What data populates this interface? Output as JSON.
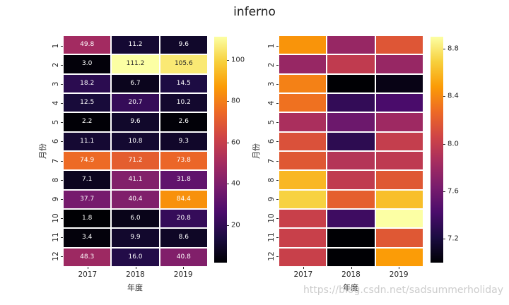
{
  "title": "inferno",
  "watermark": "https://blog.csdn.net/sadsummerholiday",
  "colors": {
    "background": "#ffffff",
    "tick_text": "#262626",
    "title_text": "#1f1f1f",
    "watermark_text": "#cccccc",
    "annotation_light": "#ffffff",
    "annotation_dark": "#262626",
    "cell_gap": "#ffffff"
  },
  "chart_data": [
    {
      "type": "heatmap",
      "colormap": "inferno",
      "xlabel": "年度",
      "ylabel": "月份",
      "columns": [
        "2017",
        "2018",
        "2019"
      ],
      "rows": [
        "1",
        "2",
        "3",
        "4",
        "5",
        "6",
        "7",
        "8",
        "9",
        "10",
        "11",
        "12"
      ],
      "annotations_shown": true,
      "values_estimated": false,
      "vmin": 1.8,
      "vmax": 111.2,
      "colorbar_tick_labels": [
        "20",
        "40",
        "60",
        "80",
        "100"
      ],
      "colorbar_tick_values": [
        20,
        40,
        60,
        80,
        100
      ],
      "values": [
        [
          49.8,
          11.2,
          9.6
        ],
        [
          3.0,
          111.2,
          105.6
        ],
        [
          18.2,
          6.7,
          14.5
        ],
        [
          12.5,
          20.7,
          10.2
        ],
        [
          2.2,
          9.6,
          2.6
        ],
        [
          11.1,
          10.8,
          9.3
        ],
        [
          74.9,
          71.2,
          73.8
        ],
        [
          7.1,
          41.1,
          31.8
        ],
        [
          37.7,
          40.4,
          84.4
        ],
        [
          1.8,
          6.0,
          20.8
        ],
        [
          3.4,
          9.9,
          8.6
        ],
        [
          48.3,
          16.0,
          40.8
        ]
      ]
    },
    {
      "type": "heatmap",
      "colormap": "inferno",
      "xlabel": "年度",
      "ylabel": "月份",
      "columns": [
        "2017",
        "2018",
        "2019"
      ],
      "rows": [
        "1",
        "2",
        "3",
        "4",
        "5",
        "6",
        "7",
        "8",
        "9",
        "10",
        "11",
        "12"
      ],
      "annotations_shown": false,
      "values_estimated": true,
      "vmin": 7.0,
      "vmax": 8.9,
      "colorbar_tick_labels": [
        "7.2",
        "7.6",
        "8.0",
        "8.4",
        "8.8"
      ],
      "colorbar_tick_values": [
        7.2,
        7.6,
        8.0,
        8.4,
        8.8
      ],
      "values": [
        [
          8.45,
          7.78,
          8.16
        ],
        [
          7.78,
          7.98,
          7.78
        ],
        [
          8.37,
          7.0,
          7.06
        ],
        [
          8.3,
          7.32,
          7.42
        ],
        [
          7.87,
          7.58,
          7.81
        ],
        [
          8.13,
          7.29,
          8.0
        ],
        [
          8.17,
          7.92,
          7.97
        ],
        [
          8.59,
          7.98,
          8.17
        ],
        [
          8.7,
          8.21,
          8.62
        ],
        [
          8.02,
          7.37,
          8.9
        ],
        [
          8.02,
          7.0,
          8.17
        ],
        [
          8.02,
          7.0,
          8.48
        ]
      ]
    }
  ],
  "layout_labels": {
    "left_chart": "annotated monthly heatmap",
    "right_chart": "unannotated monthly heatmap"
  }
}
